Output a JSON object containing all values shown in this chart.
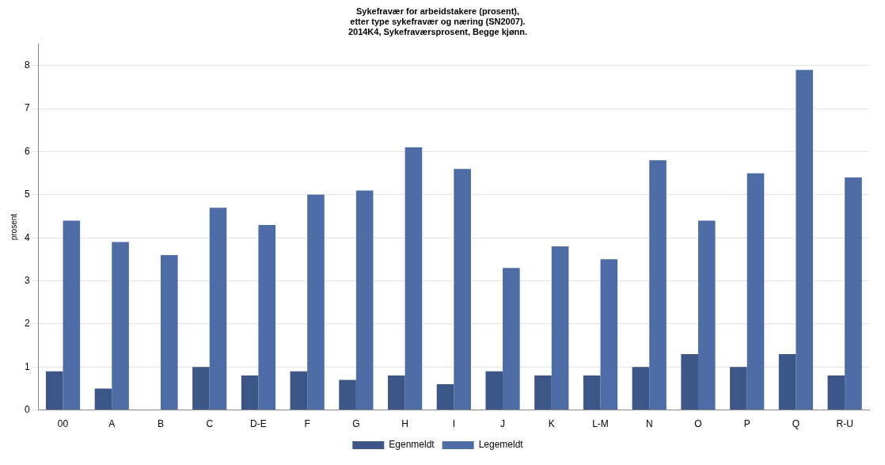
{
  "chart_data": {
    "type": "bar",
    "title": "Sykefravær for arbeidstakere (prosent),\netter type sykefravær og næring (SN2007).\n2014K4, Sykefraværsprosent, Begge kjønn.",
    "ylabel": "prosent",
    "categories": [
      "00",
      "A",
      "B",
      "C",
      "D-E",
      "F",
      "G",
      "H",
      "I",
      "J",
      "K",
      "L-M",
      "N",
      "O",
      "P",
      "Q",
      "R-U"
    ],
    "series": [
      {
        "name": "Egenmeldt",
        "color": "#3d5688",
        "values": [
          0.9,
          0.5,
          null,
          1.0,
          0.8,
          0.9,
          0.7,
          0.8,
          0.6,
          0.9,
          0.8,
          0.8,
          1.0,
          1.3,
          1.0,
          1.3,
          0.8
        ]
      },
      {
        "name": "Legemeldt",
        "color": "#4e6ca6",
        "values": [
          4.4,
          3.9,
          3.6,
          4.7,
          4.3,
          5.0,
          5.1,
          6.1,
          5.6,
          3.3,
          3.8,
          3.5,
          5.8,
          4.4,
          5.5,
          7.9,
          5.4
        ]
      }
    ],
    "ylim": [
      0,
      8.5
    ],
    "yticks": [
      0,
      1,
      2,
      3,
      4,
      5,
      6,
      7,
      8
    ],
    "grid": "y",
    "legend": "bottom"
  }
}
